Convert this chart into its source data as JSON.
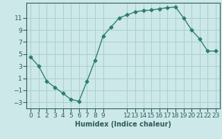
{
  "x": [
    0,
    1,
    2,
    3,
    4,
    5,
    6,
    7,
    8,
    9,
    10,
    11,
    12,
    13,
    14,
    15,
    16,
    17,
    18,
    19,
    20,
    21,
    22,
    23
  ],
  "y": [
    4.5,
    3.0,
    0.5,
    -0.5,
    -1.5,
    -2.5,
    -2.8,
    0.5,
    4.0,
    8.0,
    9.5,
    11.0,
    11.5,
    12.0,
    12.2,
    12.3,
    12.5,
    12.7,
    12.8,
    11.0,
    9.0,
    7.5,
    5.5,
    5.5
  ],
  "line_color": "#2e7d6e",
  "marker": "D",
  "markersize": 2.5,
  "bg_color": "#cce8e8",
  "grid_color": "#aacfcf",
  "xlabel": "Humidex (Indice chaleur)",
  "xlim": [
    -0.5,
    23.5
  ],
  "ylim": [
    -4,
    13.5
  ],
  "yticks": [
    -3,
    -1,
    1,
    3,
    5,
    7,
    9,
    11
  ],
  "xlabel_fontsize": 7,
  "tick_fontsize": 6.5,
  "linewidth": 1.0
}
